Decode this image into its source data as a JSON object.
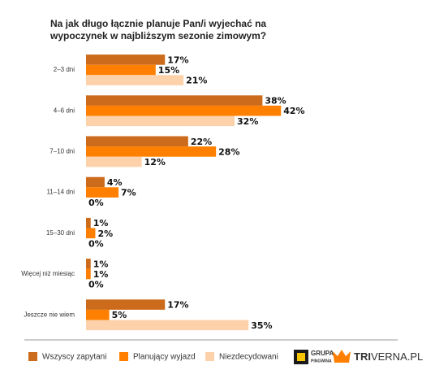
{
  "chart_data": {
    "type": "hbar",
    "title": "Na jak długo łącznie planuje Pan/i wyjechać na wypoczynek w najbliższym sezonie zimowym?",
    "categories": [
      "2–3 dni",
      "4–6 dni",
      "7–10 dni",
      "11–14 dni",
      "15–30 dni",
      "Więcej niż miesiąc",
      "Jeszcze nie wiem"
    ],
    "series": [
      {
        "name": "Wszyscy zapytani",
        "color": "#cc6b1c",
        "values": [
          17,
          38,
          22,
          4,
          1,
          1,
          17
        ],
        "value_labels": [
          "17%",
          "38%",
          "22%",
          "4%",
          "1%",
          "1%",
          "17%"
        ]
      },
      {
        "name": "Planujący wyjazd",
        "color": "#ff8000",
        "values": [
          15,
          42,
          28,
          7,
          2,
          1,
          5
        ],
        "value_labels": [
          "15%",
          "42%",
          "28%",
          "7%",
          "2%",
          "1%",
          "5%"
        ]
      },
      {
        "name": "Niezdecydowani",
        "color": "#fdd2ab",
        "values": [
          21,
          32,
          12,
          0,
          0,
          0,
          35
        ],
        "value_labels": [
          "21%",
          "32%",
          "12%",
          "0%",
          "0%",
          "0%",
          "35%"
        ]
      }
    ],
    "logos": [
      "GRUPA",
      "PINGWINA",
      "TRI",
      "VERNA.PL"
    ]
  }
}
